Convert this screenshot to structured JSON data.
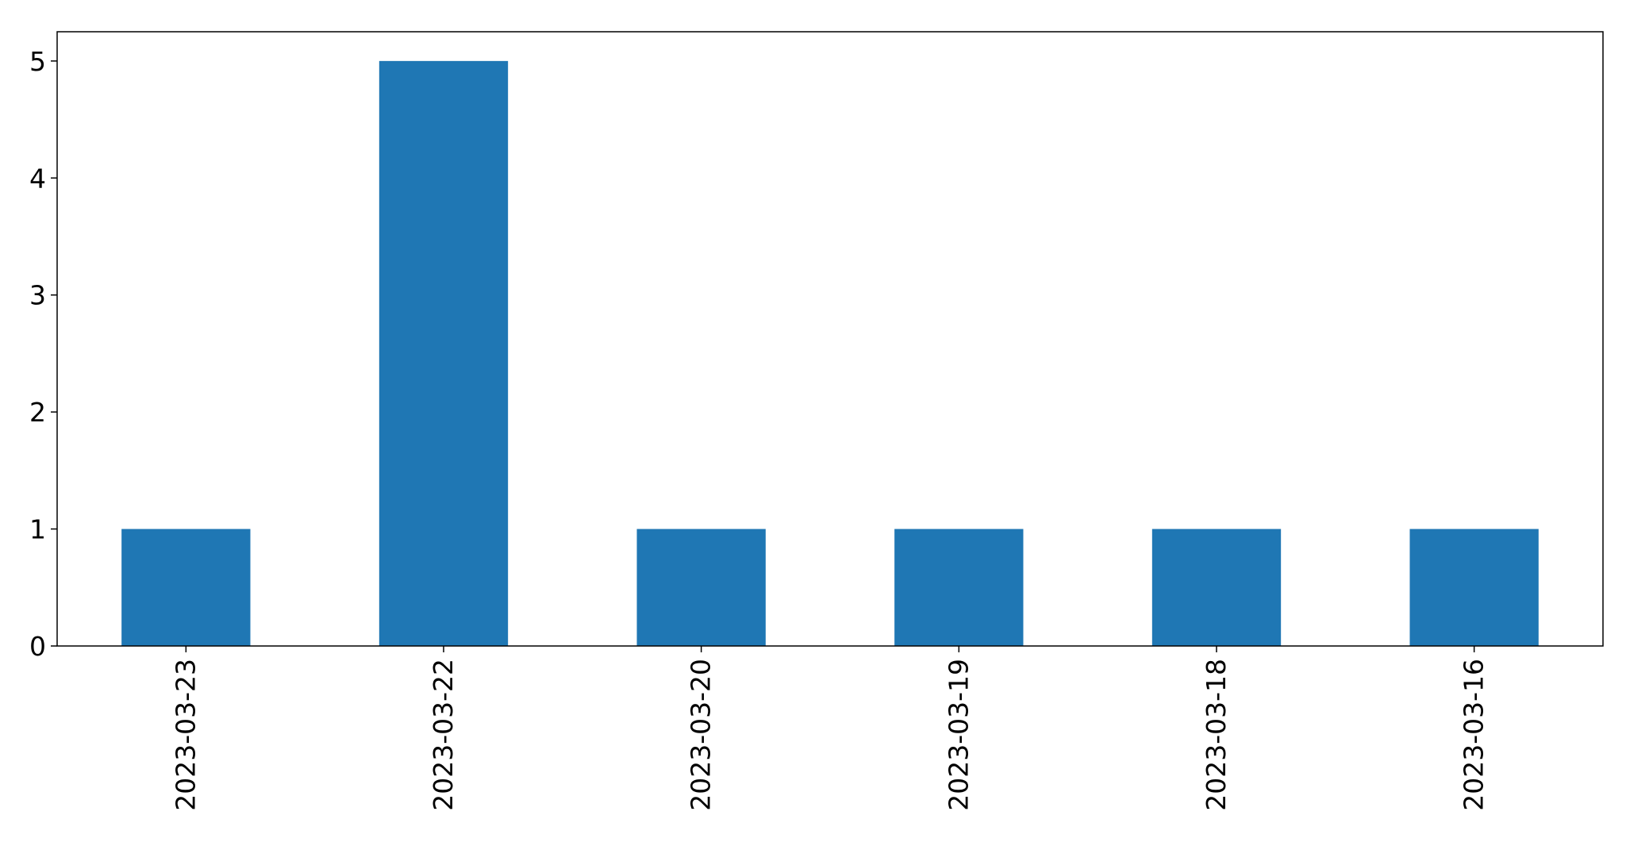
{
  "chart_data": {
    "type": "bar",
    "title": "",
    "xlabel": "",
    "ylabel": "",
    "categories": [
      "2023-03-23",
      "2023-03-22",
      "2023-03-20",
      "2023-03-19",
      "2023-03-18",
      "2023-03-16"
    ],
    "values": [
      1,
      5,
      1,
      1,
      1,
      1
    ],
    "ylim": [
      0,
      5.25
    ],
    "yticks": [
      0,
      1,
      2,
      3,
      4,
      5
    ],
    "bar_color": "#1f77b4",
    "grid": false,
    "legend": "none",
    "x_tick_rotation": "vertical"
  }
}
